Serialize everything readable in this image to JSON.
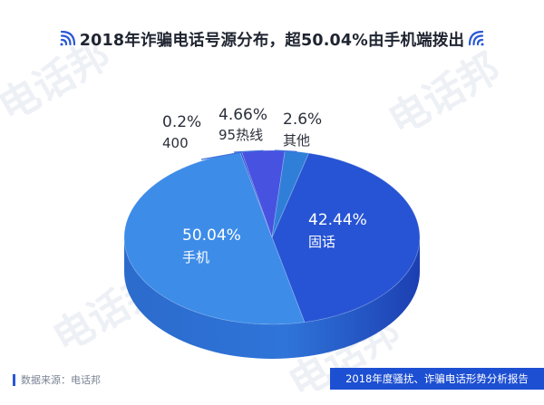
{
  "header": {
    "title": "2018年诈骗电话号源分布，超50.04%由手机端拨出"
  },
  "chart_data": {
    "type": "pie",
    "title": "2018年诈骗电话号源分布，超50.04%由手机端拨出",
    "slices": [
      {
        "label": "固话",
        "value": 42.44,
        "value_label": "42.44%",
        "color": "#2754d4"
      },
      {
        "label": "手机",
        "value": 50.04,
        "value_label": "50.04%",
        "color": "#3d8ce8"
      },
      {
        "label": "400",
        "value": 0.2,
        "value_label": "0.2%",
        "color": "#2f56d6"
      },
      {
        "label": "95热线",
        "value": 4.66,
        "value_label": "4.66%",
        "color": "#4753e0"
      },
      {
        "label": "其他",
        "value": 2.6,
        "value_label": "2.6%",
        "color": "#2f7fd8"
      }
    ],
    "legend": "none"
  },
  "watermark": {
    "text": "电话邦"
  },
  "footer": {
    "source": "数据来源：电话邦",
    "report": "2018年度骚扰、诈骗电话形势分析报告"
  },
  "colors": {
    "accent": "#1d4fd2",
    "title": "#1f2430"
  }
}
